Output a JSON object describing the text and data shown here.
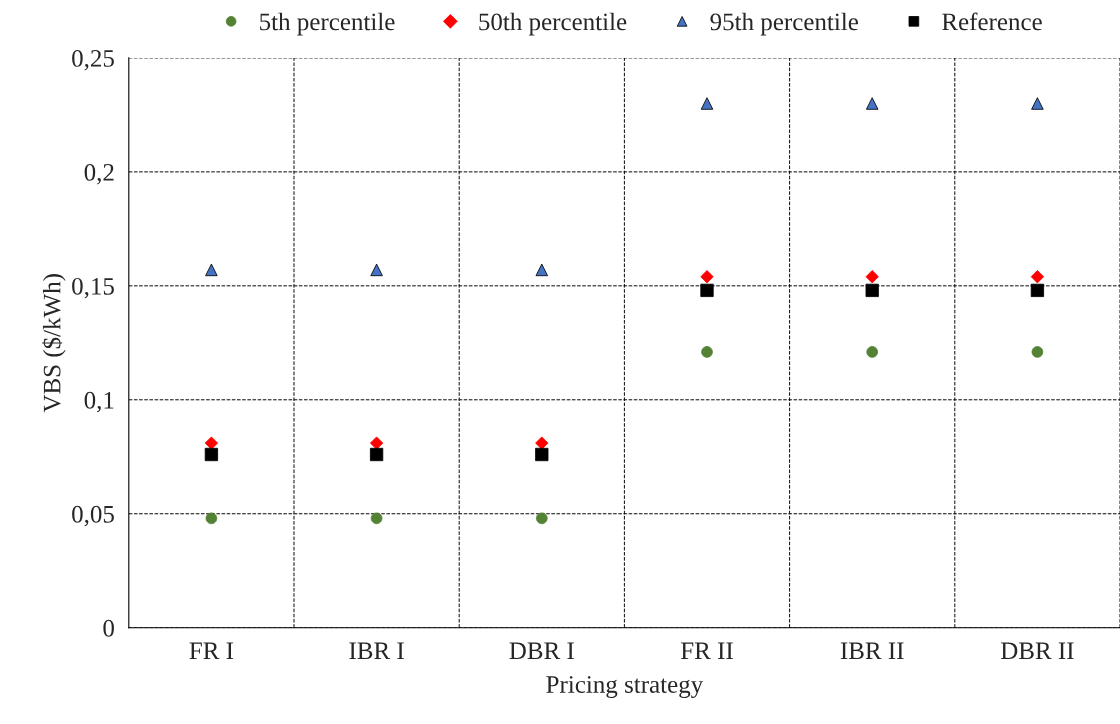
{
  "chart_data": {
    "type": "scatter",
    "xlabel": "Pricing strategy",
    "ylabel": "VBS ($/kWh)",
    "categories": [
      "FR I",
      "IBR I",
      "DBR I",
      "FR II",
      "IBR II",
      "DBR II"
    ],
    "series": [
      {
        "name": "5th percentile",
        "color": "#548235",
        "marker": "circle",
        "values": [
          0.048,
          0.048,
          0.048,
          0.121,
          0.121,
          0.121
        ]
      },
      {
        "name": "50th percentile",
        "color": "#ff0000",
        "marker": "diamond",
        "values": [
          0.081,
          0.081,
          0.081,
          0.154,
          0.154,
          0.154
        ]
      },
      {
        "name": "95th percentile",
        "color": "#4472c4",
        "marker": "triangle",
        "values": [
          0.157,
          0.157,
          0.157,
          0.23,
          0.23,
          0.23
        ]
      },
      {
        "name": "Reference",
        "color": "#000000",
        "marker": "square",
        "values": [
          0.076,
          0.076,
          0.076,
          0.148,
          0.148,
          0.148
        ]
      }
    ],
    "ylim": [
      0,
      0.25
    ],
    "yticks": [
      {
        "value": 0,
        "label": "0"
      },
      {
        "value": 0.05,
        "label": "0,05"
      },
      {
        "value": 0.1,
        "label": "0,1"
      },
      {
        "value": 0.15,
        "label": "0,15"
      },
      {
        "value": 0.2,
        "label": "0,2"
      },
      {
        "value": 0.25,
        "label": "0,25"
      }
    ],
    "grid": true,
    "legend": "top"
  }
}
